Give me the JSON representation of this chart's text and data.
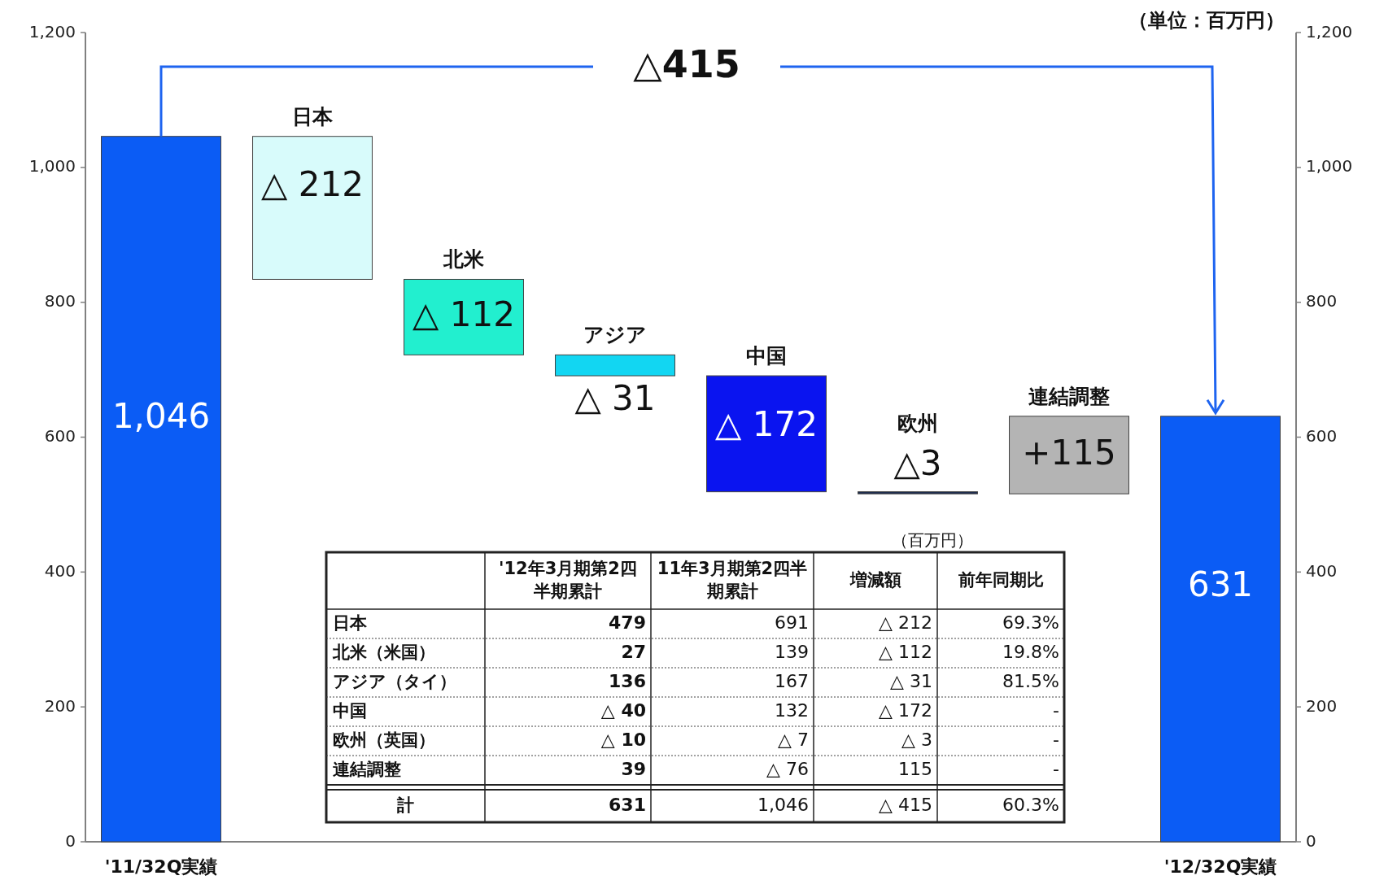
{
  "chart_data": [
    {
      "type": "bar",
      "categories": [
        "'11/32Q実績",
        "日本",
        "北米",
        "アジア",
        "中国",
        "欧州",
        "連結調整",
        "'12/32Q実績"
      ],
      "values": [
        1046,
        -212,
        -112,
        -31,
        -172,
        -3,
        115,
        631
      ],
      "base": [
        0,
        1046,
        834,
        722,
        691,
        519,
        516,
        0
      ],
      "colors": [
        "#0b5cf5",
        "#d8fbfb",
        "#22efcf",
        "#12d6f2",
        "#0a14f0",
        "#1a2a50",
        "#b4b4b4",
        "#0b5cf5"
      ],
      "value_labels": [
        "1,046",
        "△ 212",
        "△ 112",
        "△ 31",
        "△ 172",
        "△3",
        "+115",
        "631"
      ],
      "ylim": [
        0,
        1200
      ],
      "yticks": [
        0,
        200,
        400,
        600,
        800,
        {
          "value": 1000,
          "label": "1,000"
        },
        {
          "value": 1200,
          "label": "1,200"
        }
      ],
      "y2lim": [
        0,
        1200
      ],
      "y2ticks": [
        0,
        200,
        400,
        600,
        800,
        {
          "value": 1000,
          "label": "1,000"
        },
        {
          "value": 1200,
          "label": "1,200"
        }
      ],
      "annotations": [
        "（単位：百万円）",
        {
          "text": "△415",
          "x": "'12/32Q実績",
          "y": 631
        }
      ]
    },
    {
      "type": "other",
      "categories": [
        "'12年3月期第2四半期累計",
        "11年3月期第2四半期累計",
        "増減額",
        "前年同期比"
      ],
      "y_categories": [
        "日本",
        "北米（米国）",
        "アジア（タイ）",
        "中国",
        "欧州（英国）",
        "連結調整",
        "計"
      ],
      "cell_labels": [
        [
          "479",
          "691",
          "△ 212",
          "69.3%"
        ],
        [
          "27",
          "139",
          "△ 112",
          "19.8%"
        ],
        [
          "136",
          "167",
          "△ 31",
          "81.5%"
        ],
        [
          "△ 40",
          "132",
          "△ 172",
          "-"
        ],
        [
          "△ 10",
          "△ 7",
          "△ 3",
          "-"
        ],
        [
          "39",
          "△ 76",
          "115",
          "-"
        ],
        [
          "631",
          "1,046",
          "△ 415",
          "60.3%"
        ]
      ],
      "annotations": [
        "（百万円）"
      ]
    }
  ]
}
